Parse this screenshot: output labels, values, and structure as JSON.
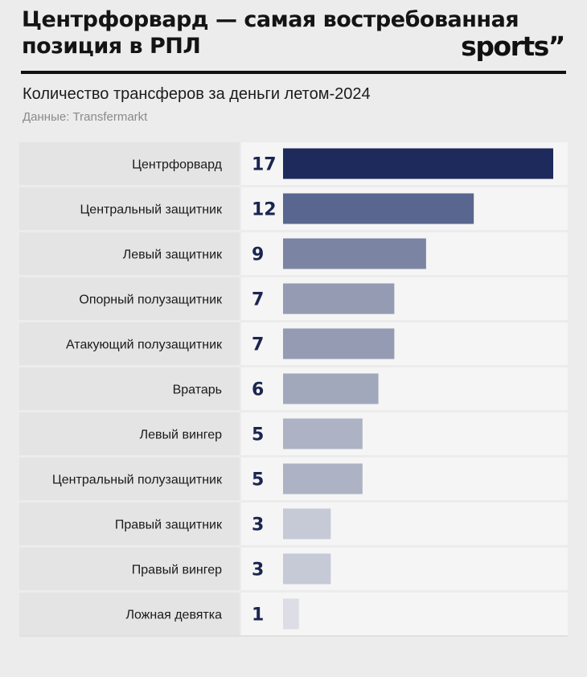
{
  "header": {
    "title": "Центрфорвард — самая востребованная позиция в РПЛ",
    "logo": "sports”"
  },
  "colors": {
    "bars": [
      "#1e2a5c",
      "#596690",
      "#7b85a3",
      "#959bb2",
      "#959bb2",
      "#a2a8bc",
      "#adb2c4",
      "#adb2c4",
      "#c6c9d6",
      "#c6c9d6",
      "#dcdde5"
    ],
    "value_text": "#1b2550"
  },
  "chart_data": {
    "type": "bar",
    "orientation": "horizontal",
    "title": "Количество трансферов за деньги летом-2024",
    "source": "Данные: Transfermarkt",
    "categories": [
      "Центрфорвард",
      "Центральный защитник",
      "Левый защитник",
      "Опорный полузащитник",
      "Атакующий полузащитник",
      "Вратарь",
      "Левый вингер",
      "Центральный полузащитник",
      "Правый защитник",
      "Правый вингер",
      "Ложная девятка"
    ],
    "values": [
      17,
      12,
      9,
      7,
      7,
      6,
      5,
      5,
      3,
      3,
      1
    ],
    "xlim": [
      0,
      17
    ],
    "grid": false,
    "legend": "none"
  }
}
